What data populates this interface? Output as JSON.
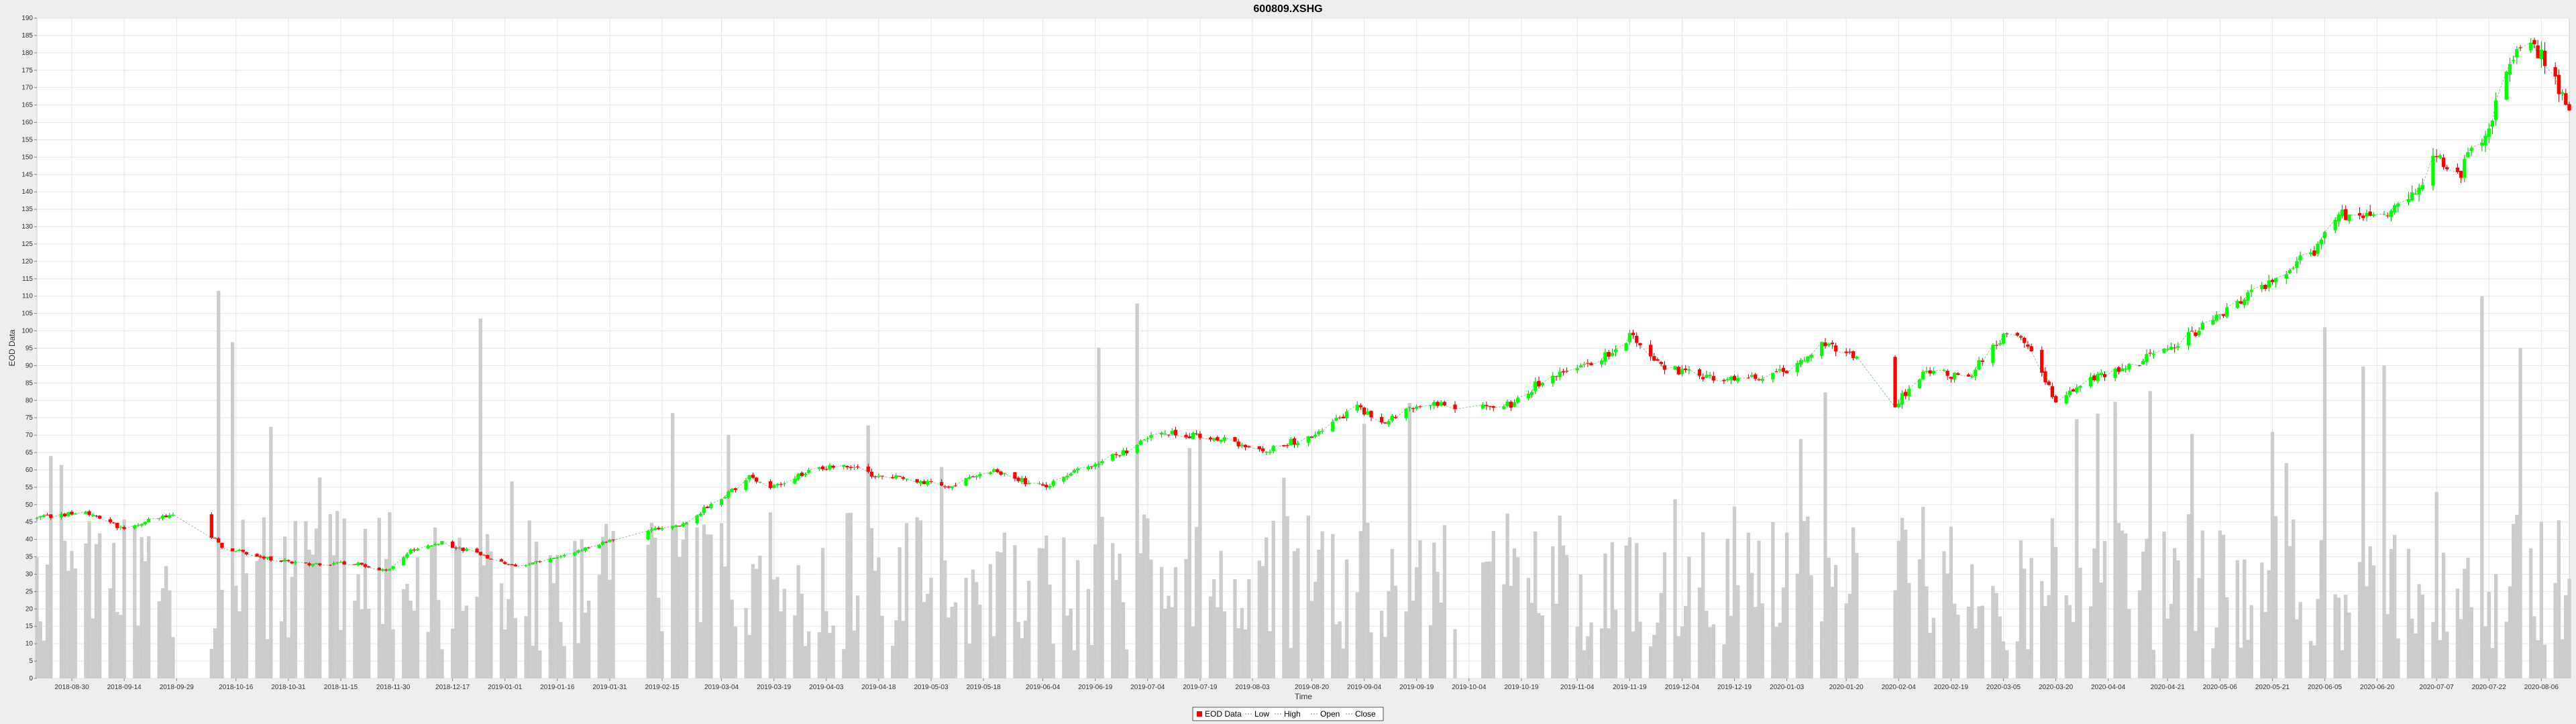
{
  "chart_data": {
    "type": "candlestick",
    "title": "600809.XSHG",
    "xlabel": "Time",
    "ylabel": "EOD Data",
    "ylim": [
      0,
      190
    ],
    "yticks": [
      0,
      5,
      10,
      15,
      20,
      25,
      30,
      35,
      40,
      45,
      50,
      55,
      60,
      65,
      70,
      75,
      80,
      85,
      90,
      95,
      100,
      105,
      110,
      115,
      120,
      125,
      130,
      135,
      140,
      145,
      150,
      155,
      160,
      165,
      170,
      175,
      180,
      185,
      190
    ],
    "xlim": [
      "2018-08-20",
      "2020-08-14"
    ],
    "xticks": [
      "2018-08-30",
      "2018-09-14",
      "2018-09-29",
      "2018-10-16",
      "2018-10-31",
      "2018-11-15",
      "2018-11-30",
      "2018-12-17",
      "2019-01-01",
      "2019-01-16",
      "2019-01-31",
      "2019-02-15",
      "2019-03-04",
      "2019-03-19",
      "2019-04-03",
      "2019-04-18",
      "2019-05-03",
      "2019-05-18",
      "2019-06-04",
      "2019-06-19",
      "2019-07-04",
      "2019-07-19",
      "2019-08-03",
      "2019-08-20",
      "2019-09-04",
      "2019-09-19",
      "2019-10-04",
      "2019-10-19",
      "2019-11-04",
      "2019-11-19",
      "2019-12-04",
      "2019-12-19",
      "2020-01-03",
      "2020-01-20",
      "2020-02-04",
      "2020-02-19",
      "2020-03-05",
      "2020-03-20",
      "2020-04-04",
      "2020-04-21",
      "2020-05-06",
      "2020-05-21",
      "2020-06-05",
      "2020-06-20",
      "2020-07-07",
      "2020-07-22",
      "2020-08-06"
    ],
    "grid": true,
    "legend_position": "bottom",
    "legend": [
      "EOD Data",
      "Low",
      "High",
      "Open",
      "Close"
    ],
    "colors": {
      "up": "#00ff00",
      "down": "#ff0000",
      "volume": "#cccccc",
      "grid": "#e6e6e6",
      "plot_bg": "#ffffff",
      "close_line": "#90c890"
    },
    "volume_series_scale": "volume bars drawn on the same value axis",
    "price_keypoints": [
      [
        "2018-08-20",
        46
      ],
      [
        "2018-09-03",
        48
      ],
      [
        "2018-09-14",
        43
      ],
      [
        "2018-09-26",
        47
      ],
      [
        "2018-10-04",
        46
      ],
      [
        "2018-10-12",
        38
      ],
      [
        "2018-10-22",
        35
      ],
      [
        "2018-11-05",
        33
      ],
      [
        "2018-11-20",
        33
      ],
      [
        "2018-11-28",
        31
      ],
      [
        "2018-12-05",
        37
      ],
      [
        "2018-12-14",
        39
      ],
      [
        "2018-12-24",
        36
      ],
      [
        "2019-01-04",
        32
      ],
      [
        "2019-01-16",
        35
      ],
      [
        "2019-01-31",
        40
      ],
      [
        "2019-02-20",
        44
      ],
      [
        "2019-03-04",
        52
      ],
      [
        "2019-03-12",
        58
      ],
      [
        "2019-03-19",
        55
      ],
      [
        "2019-03-27",
        59
      ],
      [
        "2019-04-08",
        62
      ],
      [
        "2019-04-18",
        58
      ],
      [
        "2019-04-30",
        57
      ],
      [
        "2019-05-08",
        55
      ],
      [
        "2019-05-20",
        60
      ],
      [
        "2019-06-04",
        55
      ],
      [
        "2019-06-19",
        62
      ],
      [
        "2019-07-01",
        67
      ],
      [
        "2019-07-08",
        71
      ],
      [
        "2019-07-24",
        69
      ],
      [
        "2019-08-06",
        65
      ],
      [
        "2019-08-20",
        70
      ],
      [
        "2019-09-02",
        78
      ],
      [
        "2019-09-10",
        74
      ],
      [
        "2019-09-20",
        79
      ],
      [
        "2019-10-02",
        78
      ],
      [
        "2019-10-16",
        79
      ],
      [
        "2019-10-25",
        86
      ],
      [
        "2019-11-05",
        90
      ],
      [
        "2019-11-14",
        94
      ],
      [
        "2019-11-20",
        99
      ],
      [
        "2019-11-28",
        90
      ],
      [
        "2019-12-10",
        87
      ],
      [
        "2019-12-24",
        86
      ],
      [
        "2020-01-03",
        89
      ],
      [
        "2020-01-13",
        96
      ],
      [
        "2020-01-23",
        92
      ],
      [
        "2020-02-03",
        79
      ],
      [
        "2020-02-12",
        88
      ],
      [
        "2020-02-24",
        87
      ],
      [
        "2020-03-03",
        96
      ],
      [
        "2020-03-06",
        100
      ],
      [
        "2020-03-12",
        95
      ],
      [
        "2020-03-20",
        80
      ],
      [
        "2020-03-30",
        86
      ],
      [
        "2020-04-10",
        90
      ],
      [
        "2020-04-24",
        96
      ],
      [
        "2020-05-06",
        105
      ],
      [
        "2020-05-14",
        110
      ],
      [
        "2020-05-25",
        117
      ],
      [
        "2020-06-03",
        124
      ],
      [
        "2020-06-10",
        133
      ],
      [
        "2020-06-22",
        133
      ],
      [
        "2020-06-30",
        138
      ],
      [
        "2020-07-07",
        150
      ],
      [
        "2020-07-14",
        146
      ],
      [
        "2020-07-22",
        160
      ],
      [
        "2020-07-29",
        178
      ],
      [
        "2020-08-04",
        183
      ],
      [
        "2020-08-10",
        172
      ],
      [
        "2020-08-14",
        164
      ]
    ],
    "volume_range": [
      8,
      128
    ]
  }
}
